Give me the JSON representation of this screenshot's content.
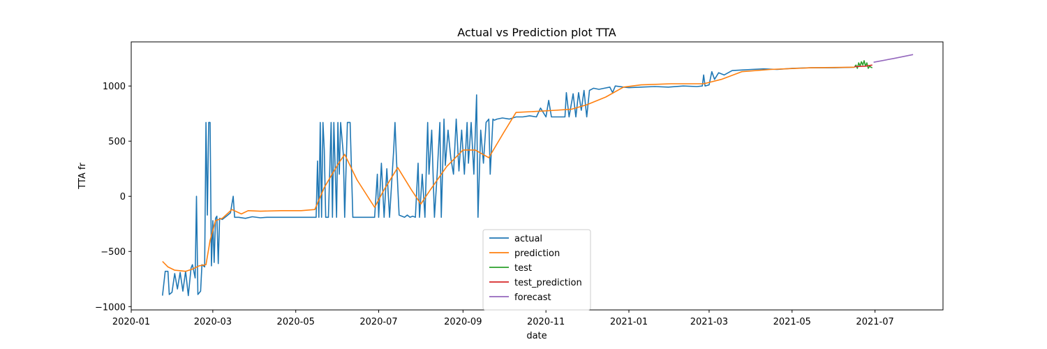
{
  "chart_data": {
    "type": "line",
    "title": "Actual vs Prediction plot TTA",
    "xlabel": "date",
    "ylabel": "TTA fr",
    "xlim": [
      "2020-01-01",
      "2021-08-20"
    ],
    "ylim": [
      -1030,
      1400
    ],
    "x_ticks": [
      "2020-01-01",
      "2020-03-01",
      "2020-05-01",
      "2020-07-01",
      "2020-09-01",
      "2020-11-01",
      "2021-01-01",
      "2021-03-01",
      "2021-05-01",
      "2021-07-01"
    ],
    "x_tick_labels": [
      "2020-01",
      "2020-03",
      "2020-05",
      "2020-07",
      "2020-09",
      "2020-11",
      "2021-01",
      "2021-03",
      "2021-05",
      "2021-07"
    ],
    "y_ticks": [
      -1000,
      -500,
      0,
      500,
      1000
    ],
    "y_tick_labels": [
      "−1000",
      "−500",
      "0",
      "500",
      "1000"
    ],
    "grid": false,
    "legend_position": "lower-center",
    "series": [
      {
        "name": "actual",
        "color": "#1f77b4",
        "points": [
          [
            "2020-01-24",
            -900
          ],
          [
            "2020-01-26",
            -680
          ],
          [
            "2020-01-28",
            -680
          ],
          [
            "2020-01-29",
            -890
          ],
          [
            "2020-01-31",
            -870
          ],
          [
            "2020-02-02",
            -700
          ],
          [
            "2020-02-04",
            -840
          ],
          [
            "2020-02-06",
            -690
          ],
          [
            "2020-02-08",
            -860
          ],
          [
            "2020-02-10",
            -680
          ],
          [
            "2020-02-12",
            -900
          ],
          [
            "2020-02-14",
            -650
          ],
          [
            "2020-02-15",
            -620
          ],
          [
            "2020-02-17",
            -740
          ],
          [
            "2020-02-18",
            0
          ],
          [
            "2020-02-19",
            -890
          ],
          [
            "2020-02-21",
            -860
          ],
          [
            "2020-02-22",
            -620
          ],
          [
            "2020-02-24",
            -640
          ],
          [
            "2020-02-25",
            670
          ],
          [
            "2020-02-26",
            -170
          ],
          [
            "2020-02-27",
            670
          ],
          [
            "2020-02-28",
            670
          ],
          [
            "2020-02-29",
            -630
          ],
          [
            "2020-03-01",
            -220
          ],
          [
            "2020-03-02",
            -600
          ],
          [
            "2020-03-03",
            -200
          ],
          [
            "2020-03-04",
            -180
          ],
          [
            "2020-03-05",
            -610
          ],
          [
            "2020-03-06",
            -200
          ],
          [
            "2020-03-08",
            -210
          ],
          [
            "2020-03-11",
            -180
          ],
          [
            "2020-03-14",
            -150
          ],
          [
            "2020-03-16",
            0
          ],
          [
            "2020-03-17",
            -190
          ],
          [
            "2020-03-20",
            -190
          ],
          [
            "2020-03-25",
            -200
          ],
          [
            "2020-03-30",
            -185
          ],
          [
            "2020-04-05",
            -195
          ],
          [
            "2020-04-10",
            -190
          ],
          [
            "2020-04-20",
            -190
          ],
          [
            "2020-05-01",
            -190
          ],
          [
            "2020-05-10",
            -190
          ],
          [
            "2020-05-16",
            -190
          ],
          [
            "2020-05-17",
            320
          ],
          [
            "2020-05-18",
            -190
          ],
          [
            "2020-05-19",
            670
          ],
          [
            "2020-05-20",
            -190
          ],
          [
            "2020-05-21",
            670
          ],
          [
            "2020-05-22",
            420
          ],
          [
            "2020-05-23",
            -190
          ],
          [
            "2020-05-25",
            -190
          ],
          [
            "2020-05-27",
            670
          ],
          [
            "2020-05-28",
            -190
          ],
          [
            "2020-05-29",
            670
          ],
          [
            "2020-05-31",
            -190
          ],
          [
            "2020-06-01",
            670
          ],
          [
            "2020-06-02",
            200
          ],
          [
            "2020-06-03",
            670
          ],
          [
            "2020-06-05",
            380
          ],
          [
            "2020-06-06",
            -190
          ],
          [
            "2020-06-08",
            670
          ],
          [
            "2020-06-10",
            670
          ],
          [
            "2020-06-12",
            -190
          ],
          [
            "2020-06-20",
            -190
          ],
          [
            "2020-06-28",
            -190
          ],
          [
            "2020-06-30",
            200
          ],
          [
            "2020-07-01",
            -190
          ],
          [
            "2020-07-03",
            300
          ],
          [
            "2020-07-05",
            -190
          ],
          [
            "2020-07-07",
            250
          ],
          [
            "2020-07-09",
            -190
          ],
          [
            "2020-07-12",
            420
          ],
          [
            "2020-07-13",
            670
          ],
          [
            "2020-07-14",
            350
          ],
          [
            "2020-07-16",
            -170
          ],
          [
            "2020-07-18",
            -180
          ],
          [
            "2020-07-20",
            -190
          ],
          [
            "2020-07-22",
            -170
          ],
          [
            "2020-07-24",
            -190
          ],
          [
            "2020-07-26",
            -180
          ],
          [
            "2020-07-28",
            -190
          ],
          [
            "2020-07-30",
            300
          ],
          [
            "2020-07-31",
            -190
          ],
          [
            "2020-08-02",
            200
          ],
          [
            "2020-08-04",
            -190
          ],
          [
            "2020-08-06",
            670
          ],
          [
            "2020-08-07",
            200
          ],
          [
            "2020-08-09",
            600
          ],
          [
            "2020-08-11",
            -190
          ],
          [
            "2020-08-13",
            200
          ],
          [
            "2020-08-15",
            670
          ],
          [
            "2020-08-16",
            -190
          ],
          [
            "2020-08-18",
            700
          ],
          [
            "2020-08-19",
            280
          ],
          [
            "2020-08-21",
            600
          ],
          [
            "2020-08-23",
            350
          ],
          [
            "2020-08-25",
            200
          ],
          [
            "2020-08-27",
            700
          ],
          [
            "2020-08-29",
            230
          ],
          [
            "2020-08-31",
            600
          ],
          [
            "2020-09-02",
            200
          ],
          [
            "2020-09-04",
            670
          ],
          [
            "2020-09-05",
            300
          ],
          [
            "2020-09-07",
            670
          ],
          [
            "2020-09-09",
            200
          ],
          [
            "2020-09-11",
            920
          ],
          [
            "2020-09-12",
            -190
          ],
          [
            "2020-09-14",
            600
          ],
          [
            "2020-09-16",
            300
          ],
          [
            "2020-09-18",
            670
          ],
          [
            "2020-09-20",
            700
          ],
          [
            "2020-09-21",
            200
          ],
          [
            "2020-09-23",
            700
          ],
          [
            "2020-09-24",
            690
          ],
          [
            "2020-09-26",
            700
          ],
          [
            "2020-09-30",
            710
          ],
          [
            "2020-10-05",
            700
          ],
          [
            "2020-10-10",
            720
          ],
          [
            "2020-10-15",
            720
          ],
          [
            "2020-10-20",
            730
          ],
          [
            "2020-10-25",
            720
          ],
          [
            "2020-10-28",
            800
          ],
          [
            "2020-11-01",
            720
          ],
          [
            "2020-11-03",
            870
          ],
          [
            "2020-11-05",
            720
          ],
          [
            "2020-11-10",
            720
          ],
          [
            "2020-11-15",
            720
          ],
          [
            "2020-11-16",
            940
          ],
          [
            "2020-11-18",
            720
          ],
          [
            "2020-11-21",
            930
          ],
          [
            "2020-11-23",
            720
          ],
          [
            "2020-11-25",
            940
          ],
          [
            "2020-11-27",
            780
          ],
          [
            "2020-11-29",
            960
          ],
          [
            "2020-12-01",
            720
          ],
          [
            "2020-12-03",
            960
          ],
          [
            "2020-12-06",
            980
          ],
          [
            "2020-12-10",
            970
          ],
          [
            "2020-12-14",
            980
          ],
          [
            "2020-12-18",
            990
          ],
          [
            "2020-12-20",
            940
          ],
          [
            "2020-12-22",
            1000
          ],
          [
            "2020-12-28",
            990
          ],
          [
            "2021-01-01",
            985
          ],
          [
            "2021-01-10",
            990
          ],
          [
            "2021-01-20",
            995
          ],
          [
            "2021-01-30",
            990
          ],
          [
            "2021-02-10",
            1000
          ],
          [
            "2021-02-20",
            995
          ],
          [
            "2021-02-24",
            1000
          ],
          [
            "2021-02-25",
            1100
          ],
          [
            "2021-02-26",
            1000
          ],
          [
            "2021-03-01",
            1010
          ],
          [
            "2021-03-03",
            1130
          ],
          [
            "2021-03-05",
            1060
          ],
          [
            "2021-03-08",
            1120
          ],
          [
            "2021-03-12",
            1100
          ],
          [
            "2021-03-18",
            1140
          ],
          [
            "2021-03-25",
            1145
          ],
          [
            "2021-04-01",
            1150
          ],
          [
            "2021-04-10",
            1155
          ],
          [
            "2021-04-20",
            1150
          ],
          [
            "2021-05-01",
            1160
          ],
          [
            "2021-05-15",
            1165
          ],
          [
            "2021-06-01",
            1165
          ],
          [
            "2021-06-16",
            1170
          ]
        ]
      },
      {
        "name": "prediction",
        "color": "#ff7f0e",
        "points": [
          [
            "2020-01-24",
            -590
          ],
          [
            "2020-01-28",
            -640
          ],
          [
            "2020-02-02",
            -670
          ],
          [
            "2020-02-10",
            -680
          ],
          [
            "2020-02-15",
            -660
          ],
          [
            "2020-02-20",
            -630
          ],
          [
            "2020-02-25",
            -620
          ],
          [
            "2020-02-28",
            -400
          ],
          [
            "2020-03-03",
            -220
          ],
          [
            "2020-03-08",
            -200
          ],
          [
            "2020-03-15",
            -120
          ],
          [
            "2020-03-22",
            -160
          ],
          [
            "2020-03-27",
            -130
          ],
          [
            "2020-04-05",
            -135
          ],
          [
            "2020-04-20",
            -130
          ],
          [
            "2020-05-05",
            -130
          ],
          [
            "2020-05-15",
            -120
          ],
          [
            "2020-05-22",
            80
          ],
          [
            "2020-06-01",
            290
          ],
          [
            "2020-06-06",
            380
          ],
          [
            "2020-06-15",
            150
          ],
          [
            "2020-06-28",
            -100
          ],
          [
            "2020-07-05",
            60
          ],
          [
            "2020-07-15",
            260
          ],
          [
            "2020-07-25",
            60
          ],
          [
            "2020-08-01",
            -70
          ],
          [
            "2020-08-08",
            60
          ],
          [
            "2020-08-20",
            270
          ],
          [
            "2020-09-01",
            420
          ],
          [
            "2020-09-10",
            420
          ],
          [
            "2020-09-20",
            350
          ],
          [
            "2020-10-01",
            580
          ],
          [
            "2020-10-10",
            760
          ],
          [
            "2020-10-25",
            770
          ],
          [
            "2020-11-08",
            780
          ],
          [
            "2020-11-20",
            790
          ],
          [
            "2020-12-01",
            830
          ],
          [
            "2020-12-15",
            900
          ],
          [
            "2020-12-28",
            990
          ],
          [
            "2021-01-10",
            1010
          ],
          [
            "2021-02-01",
            1020
          ],
          [
            "2021-02-25",
            1020
          ],
          [
            "2021-03-10",
            1060
          ],
          [
            "2021-03-25",
            1130
          ],
          [
            "2021-04-15",
            1150
          ],
          [
            "2021-05-15",
            1165
          ],
          [
            "2021-06-16",
            1170
          ]
        ]
      },
      {
        "name": "test",
        "color": "#2ca02c",
        "points": [
          [
            "2021-06-16",
            1175
          ],
          [
            "2021-06-17",
            1190
          ],
          [
            "2021-06-18",
            1160
          ],
          [
            "2021-06-19",
            1210
          ],
          [
            "2021-06-20",
            1180
          ],
          [
            "2021-06-21",
            1220
          ],
          [
            "2021-06-22",
            1190
          ],
          [
            "2021-06-23",
            1230
          ],
          [
            "2021-06-24",
            1180
          ],
          [
            "2021-06-25",
            1210
          ],
          [
            "2021-06-26",
            1160
          ],
          [
            "2021-06-27",
            1180
          ],
          [
            "2021-06-28",
            1170
          ],
          [
            "2021-06-29",
            1165
          ]
        ]
      },
      {
        "name": "test_prediction",
        "color": "#d62728",
        "points": [
          [
            "2021-06-16",
            1175
          ],
          [
            "2021-06-20",
            1178
          ],
          [
            "2021-06-24",
            1180
          ],
          [
            "2021-06-29",
            1190
          ]
        ]
      },
      {
        "name": "forecast",
        "color": "#9467bd",
        "points": [
          [
            "2021-06-30",
            1215
          ],
          [
            "2021-07-15",
            1250
          ],
          [
            "2021-07-29",
            1285
          ]
        ]
      }
    ]
  }
}
